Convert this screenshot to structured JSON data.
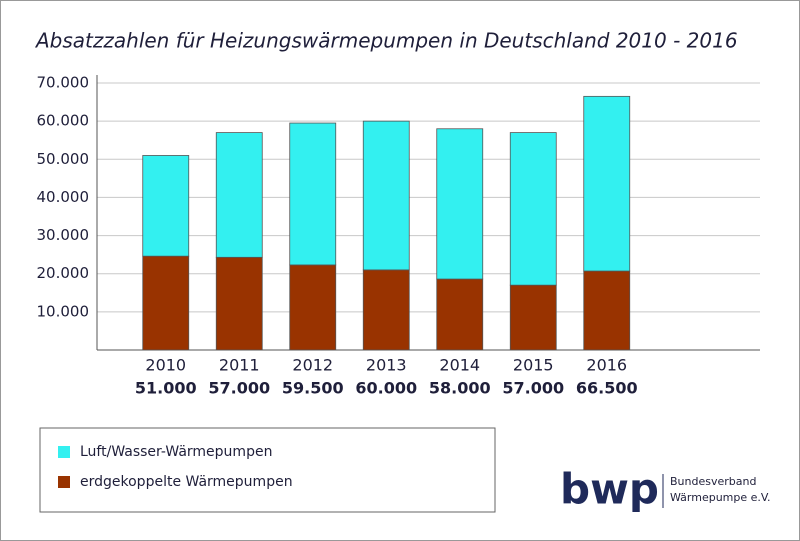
{
  "chart_data": {
    "type": "stacked-bar",
    "title": "Absatzzahlen für Heizungswärmepumpen in Deutschland 2010 - 2016",
    "categories": [
      "2010",
      "2011",
      "2012",
      "2013",
      "2014",
      "2015",
      "2016"
    ],
    "series": [
      {
        "name": "erdgekoppelte Wärmepumpen",
        "color": "#993300",
        "values": [
          24600,
          24300,
          22300,
          21000,
          18600,
          17000,
          20700
        ]
      },
      {
        "name": "Luft/Wasser-Wärmepumpen",
        "color": "#33f0f0",
        "values": [
          26400,
          32700,
          37200,
          39000,
          39400,
          40000,
          45800
        ]
      }
    ],
    "totals": {
      "values": [
        51000,
        57000,
        59500,
        60000,
        58000,
        57000,
        66500
      ],
      "value_labels": [
        "51.000",
        "57.000",
        "59.500",
        "60.000",
        "58.000",
        "57.000",
        "66.500"
      ]
    },
    "ylim": [
      0,
      70000
    ],
    "yticks": [
      {
        "value": 10000,
        "label": "10.000"
      },
      {
        "value": 20000,
        "label": "20.000"
      },
      {
        "value": 30000,
        "label": "30.000"
      },
      {
        "value": 40000,
        "label": "40.000"
      },
      {
        "value": 50000,
        "label": "50.000"
      },
      {
        "value": 60000,
        "label": "60.000"
      },
      {
        "value": 70000,
        "label": "70.000"
      }
    ],
    "grid": true
  },
  "logo": {
    "mark": "bwp",
    "lines": [
      "Bundesverband",
      "Wärmepumpe e.V."
    ]
  }
}
